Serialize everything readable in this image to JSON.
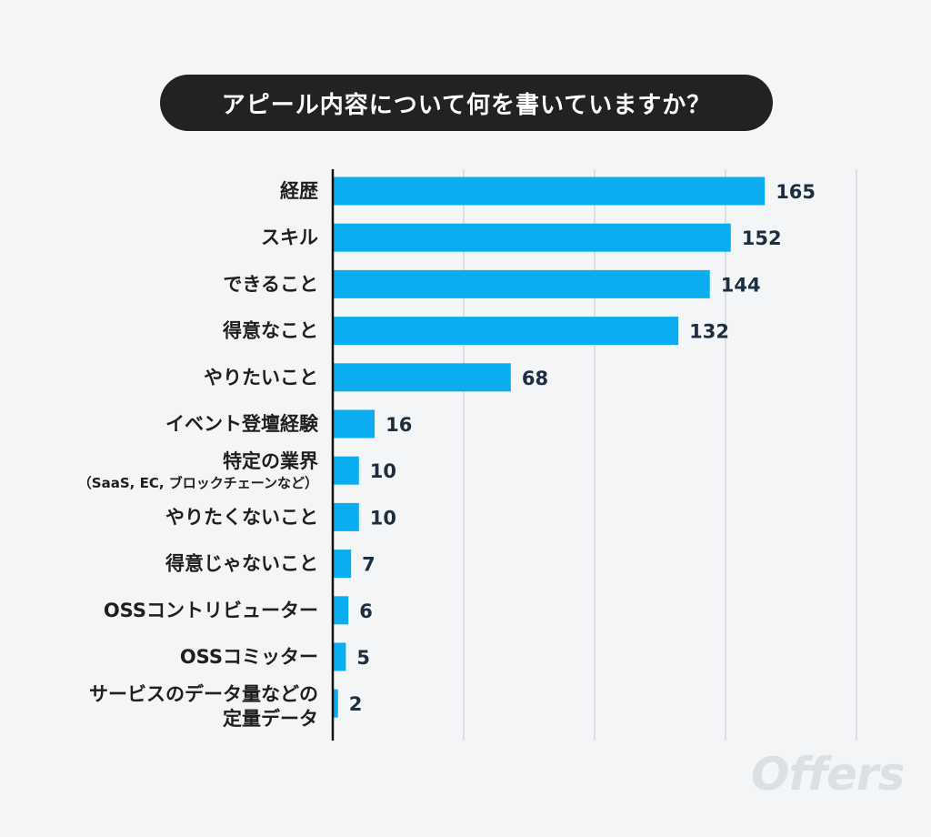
{
  "title": "アピール内容について何を書いていますか？",
  "logo": "Offers",
  "colors": {
    "bar": "#0aaef0",
    "title_bg": "#222222",
    "grid": "#d6d8db"
  },
  "chart_data": {
    "type": "bar",
    "orientation": "horizontal",
    "title": "アピール内容について何を書いていますか？",
    "categories": [
      [
        "経歴"
      ],
      [
        "スキル"
      ],
      [
        "できること"
      ],
      [
        "得意なこと"
      ],
      [
        "やりたいこと"
      ],
      [
        "イベント登壇経験"
      ],
      [
        "特定の業界",
        "（SaaS, EC, ブロックチェーンなど）"
      ],
      [
        "やりたくないこと"
      ],
      [
        "得意じゃないこと"
      ],
      [
        "OSSコントリビューター"
      ],
      [
        "OSSコミッター"
      ],
      [
        "サービスのデータ量などの",
        "定量データ"
      ]
    ],
    "values": [
      165,
      152,
      144,
      132,
      68,
      16,
      10,
      10,
      7,
      6,
      5,
      2
    ],
    "xlim": [
      0,
      200
    ],
    "grid": true,
    "xlabel": "",
    "ylabel": ""
  }
}
